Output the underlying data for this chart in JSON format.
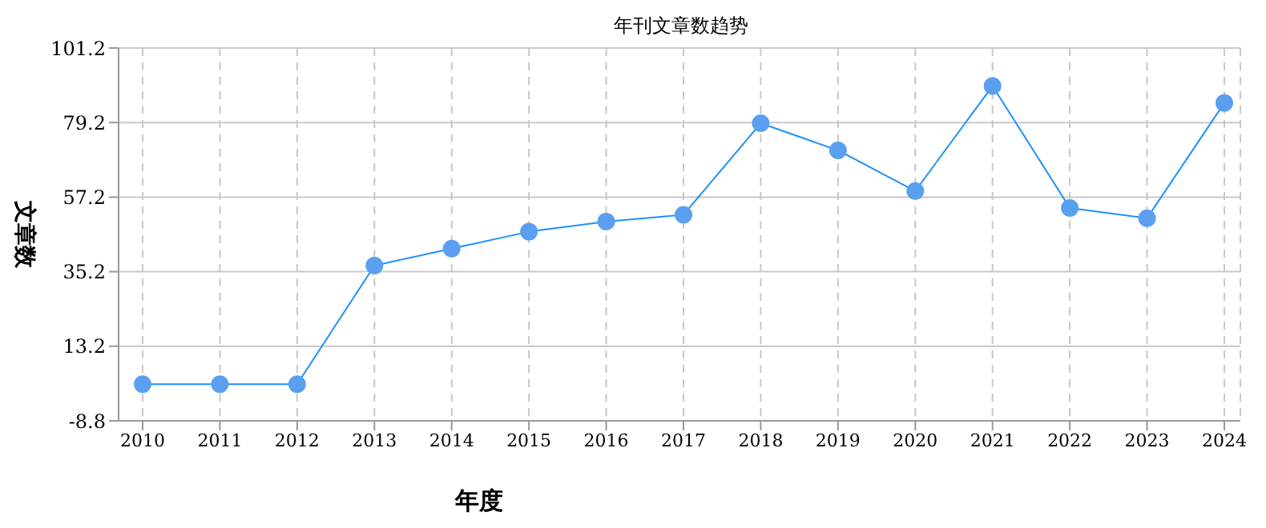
{
  "chart_data": {
    "type": "line",
    "title": "年刊文章数趋势",
    "xlabel": "年度",
    "ylabel": "文章数",
    "categories": [
      "2010",
      "2011",
      "2012",
      "2013",
      "2014",
      "2015",
      "2016",
      "2017",
      "2018",
      "2019",
      "2020",
      "2021",
      "2022",
      "2023",
      "2024"
    ],
    "series": [
      {
        "color": "#1e90ff",
        "values": [
          2,
          2,
          2,
          37,
          42,
          47,
          50,
          52,
          79,
          71,
          59,
          90,
          54,
          51,
          85
        ]
      }
    ],
    "ylim": [
      -8.8,
      101.2
    ],
    "yticks": [
      -8.8,
      13.2,
      35.2,
      57.2,
      79.2,
      101.2
    ],
    "grid": true,
    "marker": "circle",
    "line_style": "solid"
  }
}
